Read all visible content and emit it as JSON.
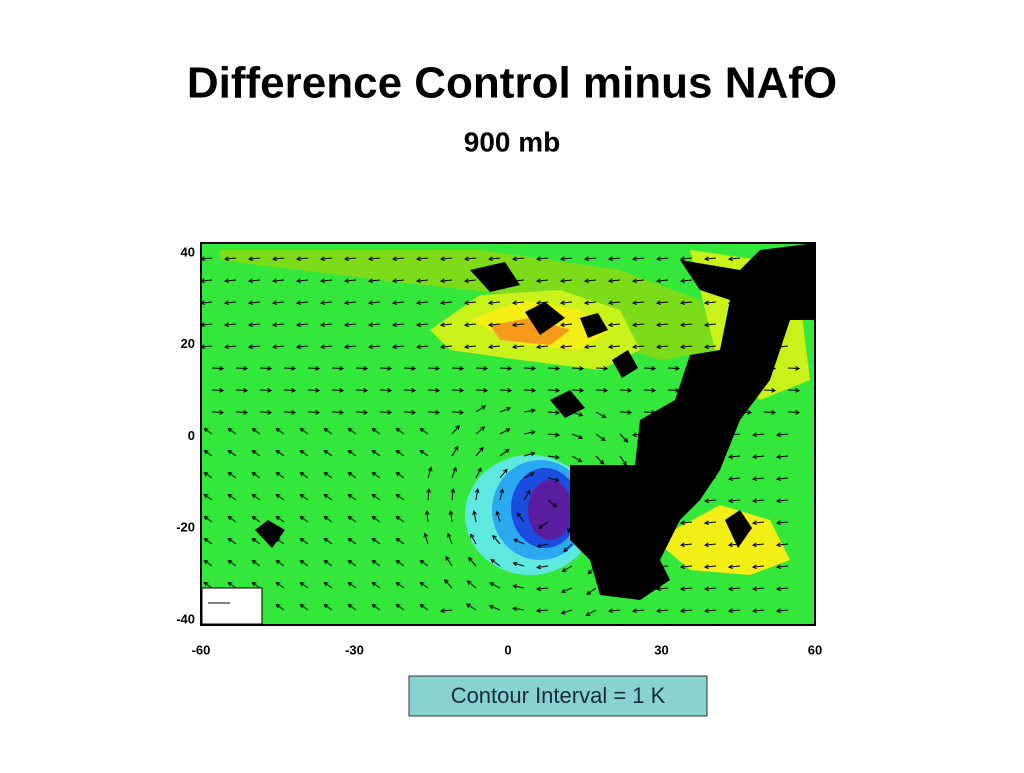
{
  "title": "Difference Control minus NAfO",
  "subtitle": "900 mb",
  "map": {
    "xticks": [
      -60,
      -30,
      0,
      30,
      60
    ],
    "yticks": [
      40,
      20,
      0,
      -20,
      -40
    ]
  },
  "note": "Contour Interval = 1 K"
}
